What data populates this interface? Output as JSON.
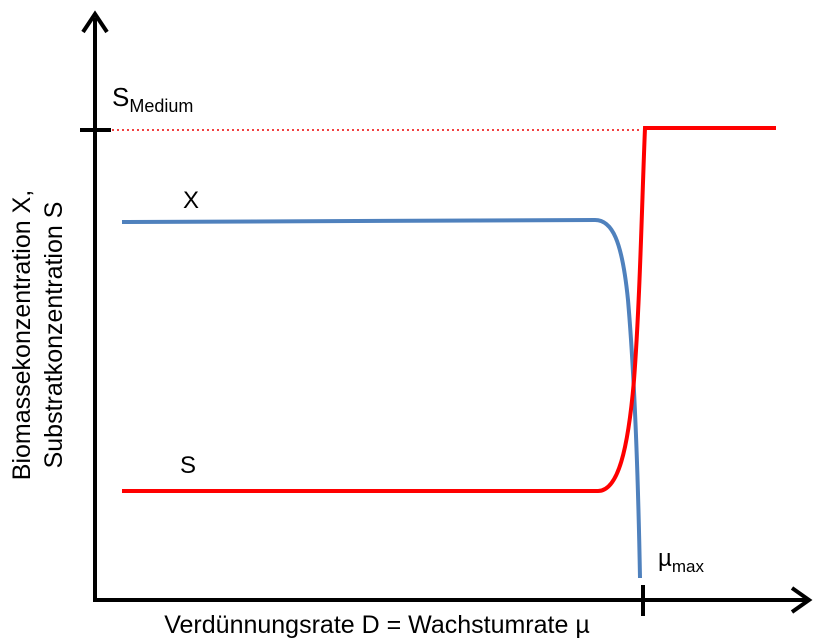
{
  "y_axis_label": [
    "Biomassekonzentration X,",
    "Substratkonzentration S"
  ],
  "x_axis_label": "Verdünnungsrate D = Wachstumrate µ",
  "s_medium": {
    "symbol": "S",
    "subscript": "Medium"
  },
  "x_curve_label": "X",
  "s_curve_label": "S",
  "mu_max": {
    "symbol": "µ",
    "subscript": "max"
  }
}
